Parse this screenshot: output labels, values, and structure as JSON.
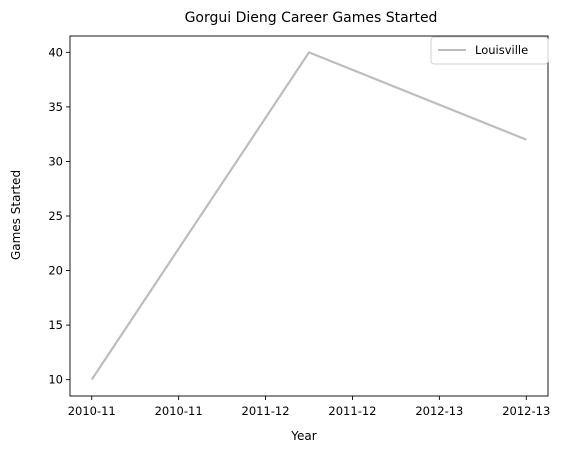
{
  "chart_data": {
    "type": "line",
    "title": "Gorgui Dieng Career Games Started",
    "xlabel": "Year",
    "ylabel": "Games Started",
    "x_ticks": [
      "2010-11",
      "2010-11",
      "2011-12",
      "2011-12",
      "2012-13",
      "2012-13"
    ],
    "x_range": [
      -0.1,
      2.1
    ],
    "ylim": [
      8.5,
      41.5
    ],
    "y_ticks": [
      10,
      15,
      20,
      25,
      30,
      35,
      40
    ],
    "legend_position": "top-right",
    "grid": false,
    "series": [
      {
        "name": "Louisville",
        "color": "#bdbdbd",
        "x": [
          0,
          1,
          2
        ],
        "y": [
          10,
          40,
          32
        ]
      }
    ]
  }
}
